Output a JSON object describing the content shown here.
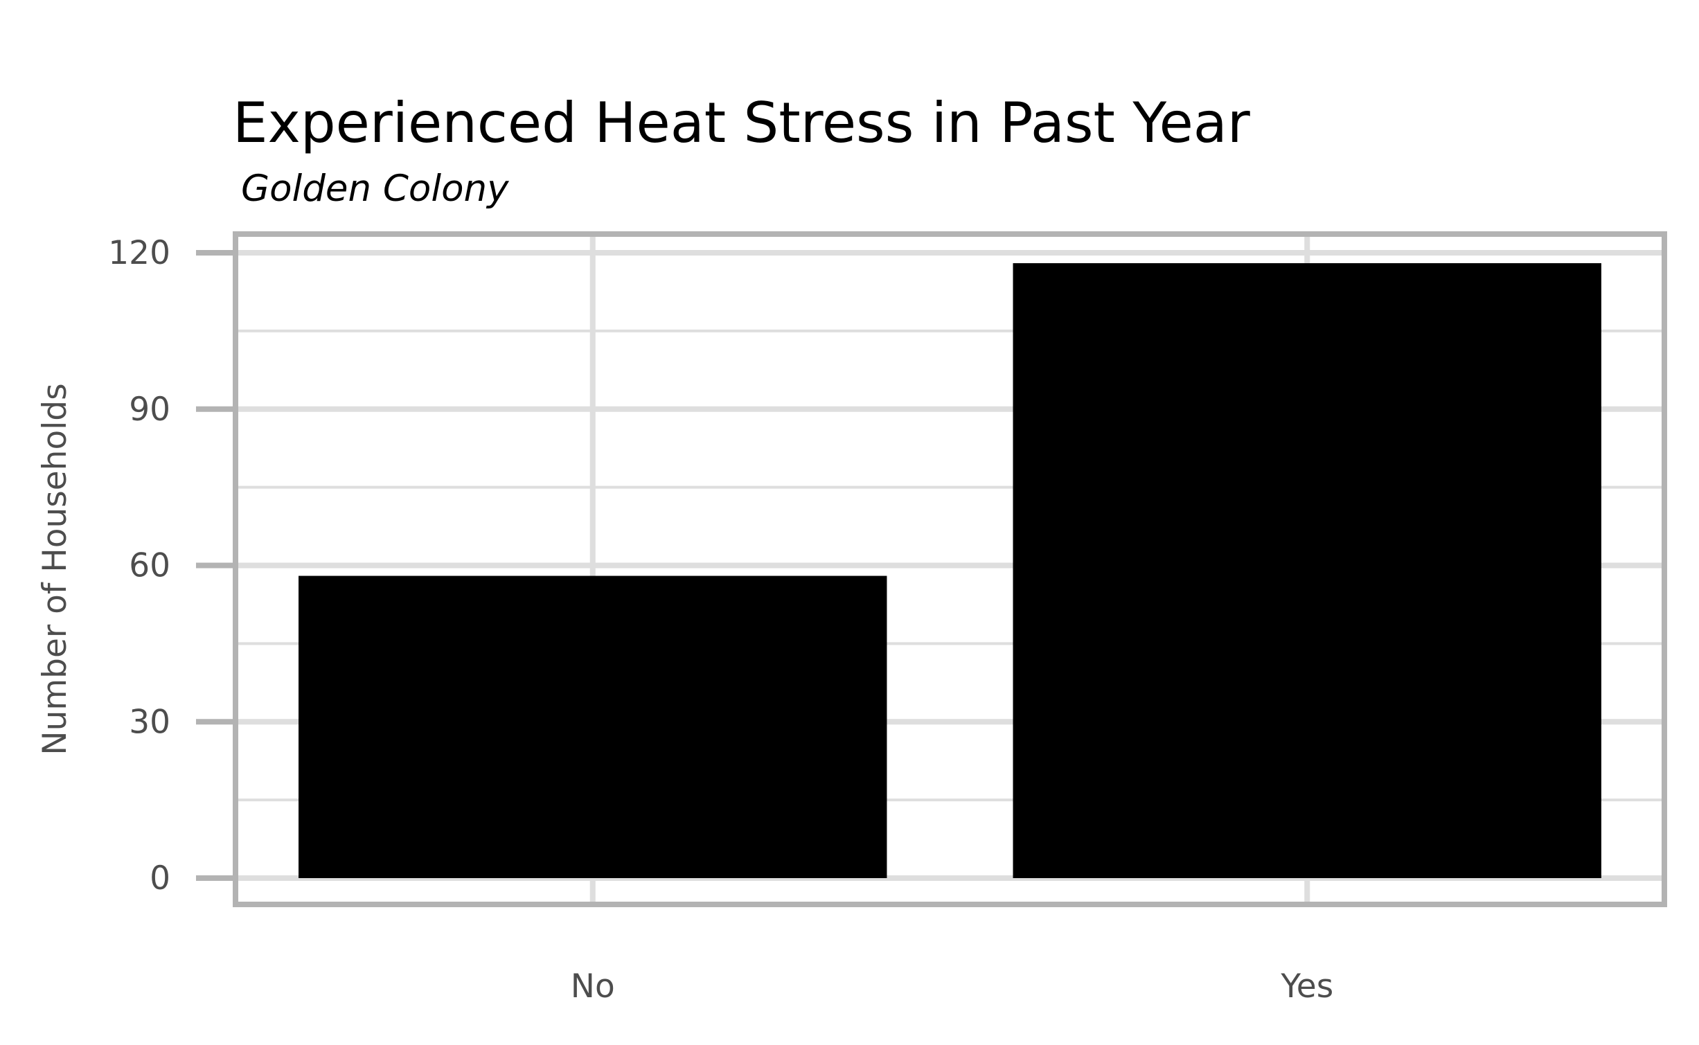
{
  "chart_data": {
    "type": "bar",
    "title": "Experienced Heat Stress in Past Year",
    "subtitle": "Golden Colony",
    "xlabel": "",
    "ylabel": "Number of Households",
    "categories": [
      "No",
      "Yes"
    ],
    "values": [
      58,
      118
    ],
    "ylim": [
      0,
      120
    ],
    "yticks": [
      "0",
      "30",
      "60",
      "90",
      "120"
    ],
    "grid": true,
    "legend": "none",
    "colors": {
      "bar": "#000000",
      "grid": "#dedede",
      "panel_border": "#b3b3b3",
      "tick": "#b3b3b3",
      "text": "#4d4d4d"
    }
  }
}
